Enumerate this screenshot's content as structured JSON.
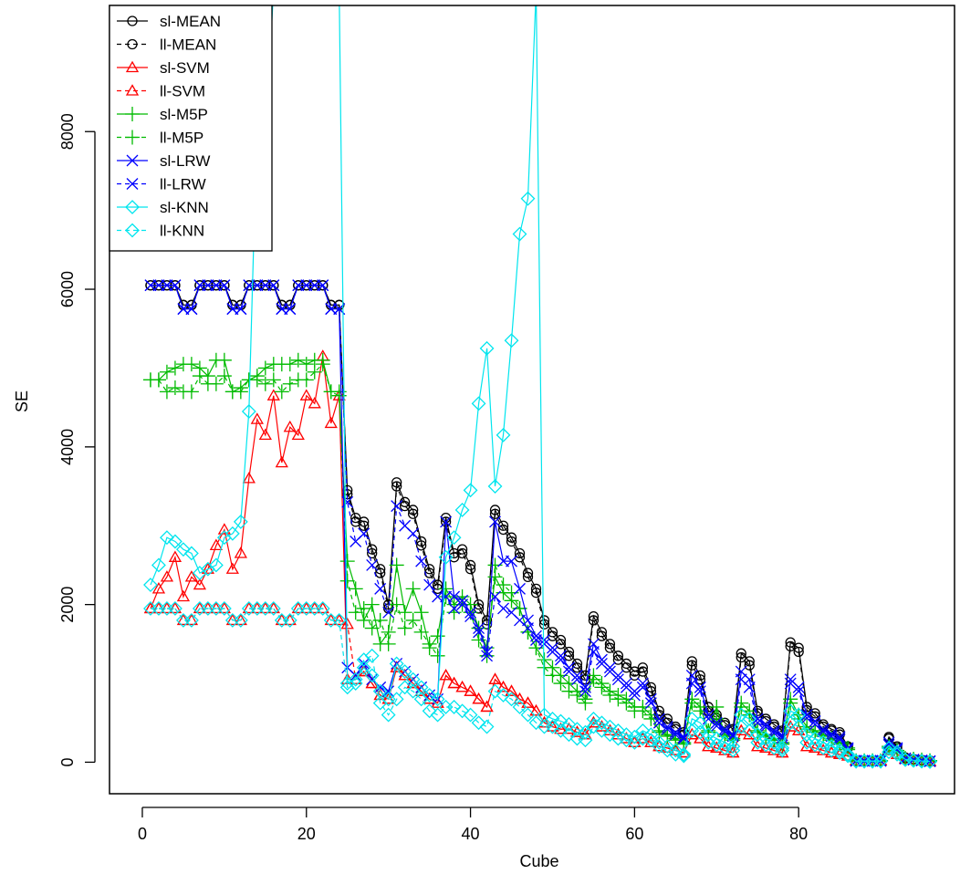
{
  "chart_data": {
    "type": "line",
    "title": "",
    "xlabel": "Cube",
    "ylabel": "SE",
    "xlim": [
      -4,
      99
    ],
    "ylim": [
      -400,
      9600
    ],
    "x_ticks": [
      0,
      20,
      40,
      60,
      80
    ],
    "y_ticks": [
      0,
      2000,
      4000,
      6000,
      8000
    ],
    "grid": false,
    "legend_position": "top-left",
    "x": [
      1,
      2,
      3,
      4,
      5,
      6,
      7,
      8,
      9,
      10,
      11,
      12,
      13,
      14,
      15,
      16,
      17,
      18,
      19,
      20,
      21,
      22,
      23,
      24,
      25,
      26,
      27,
      28,
      29,
      30,
      31,
      32,
      33,
      34,
      35,
      36,
      37,
      38,
      39,
      40,
      41,
      42,
      43,
      44,
      45,
      46,
      47,
      48,
      49,
      50,
      51,
      52,
      53,
      54,
      55,
      56,
      57,
      58,
      59,
      60,
      61,
      62,
      63,
      64,
      65,
      66,
      67,
      68,
      69,
      70,
      71,
      72,
      73,
      74,
      75,
      76,
      77,
      78,
      79,
      80,
      81,
      82,
      83,
      84,
      85,
      86,
      87,
      88,
      89,
      90,
      91,
      92,
      93,
      94,
      95,
      96
    ],
    "series": [
      {
        "name": "sl-MEAN",
        "color": "#000000",
        "dash": false,
        "marker": "circle",
        "values": [
          6050,
          6050,
          6050,
          6050,
          5800,
          5800,
          6050,
          6050,
          6050,
          6050,
          5800,
          5800,
          6050,
          6050,
          6050,
          6050,
          5800,
          5800,
          6050,
          6050,
          6050,
          6050,
          5800,
          5800,
          3450,
          3100,
          3050,
          2700,
          2450,
          2000,
          3550,
          3300,
          3200,
          2800,
          2450,
          2250,
          3100,
          2650,
          2700,
          2500,
          2000,
          1800,
          3200,
          3000,
          2850,
          2650,
          2400,
          2200,
          1800,
          1650,
          1550,
          1400,
          1250,
          1100,
          1850,
          1650,
          1500,
          1350,
          1250,
          1150,
          1200,
          950,
          650,
          550,
          450,
          380,
          1280,
          1100,
          700,
          600,
          500,
          420,
          1380,
          1280,
          650,
          550,
          480,
          400,
          1520,
          1450,
          700,
          620,
          480,
          420,
          380,
          200,
          20,
          20,
          20,
          20,
          320,
          200,
          60,
          40,
          30,
          20
        ]
      },
      {
        "name": "ll-MEAN",
        "color": "#000000",
        "dash": true,
        "marker": "circle",
        "values": [
          6050,
          6050,
          6050,
          6050,
          5800,
          5800,
          6050,
          6050,
          6050,
          6050,
          5800,
          5800,
          6050,
          6050,
          6050,
          6050,
          5800,
          5800,
          6050,
          6050,
          6050,
          6050,
          5800,
          5800,
          3400,
          3050,
          3000,
          2650,
          2400,
          1950,
          3500,
          3250,
          3150,
          2750,
          2400,
          2200,
          3050,
          2600,
          2650,
          2450,
          1950,
          1750,
          3150,
          2950,
          2800,
          2600,
          2350,
          2150,
          1750,
          1600,
          1500,
          1350,
          1200,
          1050,
          1800,
          1600,
          1450,
          1300,
          1200,
          1100,
          1150,
          900,
          600,
          500,
          420,
          350,
          1230,
          1050,
          650,
          560,
          470,
          400,
          1330,
          1230,
          620,
          520,
          450,
          380,
          1470,
          1400,
          660,
          580,
          450,
          400,
          350,
          180,
          15,
          15,
          15,
          15,
          300,
          180,
          50,
          35,
          25,
          15
        ]
      },
      {
        "name": "sl-SVM",
        "color": "#ff0000",
        "dash": false,
        "marker": "triangle",
        "values": [
          1950,
          2200,
          2350,
          2600,
          2100,
          2350,
          2250,
          2450,
          2750,
          2950,
          2450,
          2650,
          3600,
          4350,
          4150,
          4650,
          3800,
          4250,
          4150,
          4650,
          4550,
          5150,
          4300,
          4650,
          1050,
          1050,
          1150,
          1000,
          850,
          800,
          1200,
          1100,
          1000,
          900,
          800,
          750,
          1100,
          1000,
          950,
          900,
          800,
          700,
          1050,
          950,
          900,
          800,
          750,
          650,
          500,
          450,
          420,
          420,
          380,
          350,
          500,
          450,
          400,
          350,
          300,
          250,
          300,
          250,
          200,
          180,
          150,
          120,
          350,
          300,
          200,
          180,
          150,
          120,
          400,
          350,
          200,
          180,
          150,
          120,
          450,
          400,
          200,
          180,
          150,
          120,
          100,
          80,
          20,
          20,
          20,
          20,
          150,
          100,
          40,
          30,
          20,
          10
        ]
      },
      {
        "name": "ll-SVM",
        "color": "#ff0000",
        "dash": true,
        "marker": "triangle",
        "values": [
          1950,
          1950,
          1950,
          1950,
          1800,
          1800,
          1950,
          1950,
          1950,
          1950,
          1800,
          1800,
          1950,
          1950,
          1950,
          1950,
          1800,
          1800,
          1950,
          1950,
          1950,
          1950,
          1800,
          1800,
          1750,
          1050,
          1150,
          1000,
          850,
          800,
          1200,
          1100,
          1000,
          900,
          800,
          750,
          1100,
          1000,
          950,
          900,
          800,
          700,
          1050,
          950,
          900,
          800,
          750,
          650,
          500,
          450,
          420,
          420,
          380,
          350,
          500,
          450,
          400,
          350,
          300,
          250,
          300,
          250,
          200,
          180,
          150,
          120,
          350,
          300,
          200,
          180,
          150,
          120,
          400,
          350,
          200,
          180,
          150,
          120,
          450,
          400,
          200,
          180,
          150,
          120,
          100,
          80,
          20,
          20,
          20,
          20,
          150,
          100,
          40,
          30,
          20,
          10
        ]
      },
      {
        "name": "sl-M5P",
        "color": "#00bb00",
        "dash": false,
        "marker": "plus",
        "values": [
          4850,
          4850,
          4950,
          5000,
          5050,
          5050,
          5000,
          4900,
          5100,
          5100,
          4700,
          4750,
          4850,
          4900,
          5000,
          5050,
          5050,
          5050,
          5100,
          5050,
          5100,
          5100,
          4700,
          4700,
          2550,
          2200,
          1800,
          2000,
          1500,
          1650,
          2500,
          1900,
          2200,
          1900,
          1450,
          1600,
          2200,
          2000,
          2100,
          2000,
          1700,
          1450,
          2350,
          2150,
          2050,
          1950,
          1650,
          1450,
          1300,
          1200,
          1100,
          1000,
          900,
          800,
          1100,
          1000,
          900,
          850,
          800,
          700,
          700,
          600,
          400,
          350,
          300,
          250,
          800,
          700,
          400,
          700,
          350,
          300,
          750,
          650,
          400,
          350,
          300,
          250,
          800,
          600,
          450,
          400,
          350,
          300,
          250,
          180,
          20,
          20,
          20,
          20,
          200,
          150,
          50,
          40,
          30,
          20
        ]
      },
      {
        "name": "ll-M5P",
        "color": "#00bb00",
        "dash": true,
        "marker": "plus",
        "values": [
          4850,
          4850,
          4700,
          4750,
          4700,
          4700,
          4900,
          4800,
          4800,
          4900,
          4700,
          4700,
          4850,
          4850,
          4800,
          4850,
          4700,
          4800,
          4850,
          4850,
          4950,
          5050,
          4700,
          4650,
          2300,
          1900,
          1950,
          1700,
          1800,
          1500,
          2000,
          1700,
          1800,
          1650,
          1500,
          1350,
          2100,
          1900,
          2000,
          1900,
          1550,
          1350,
          2500,
          2250,
          2150,
          1950,
          1650,
          1450,
          1200,
          1100,
          1000,
          900,
          850,
          750,
          1050,
          950,
          850,
          800,
          750,
          650,
          650,
          550,
          380,
          330,
          280,
          230,
          750,
          650,
          380,
          550,
          330,
          280,
          700,
          600,
          380,
          330,
          280,
          230,
          750,
          550,
          420,
          380,
          330,
          280,
          230,
          160,
          15,
          15,
          15,
          15,
          180,
          130,
          40,
          30,
          20,
          15
        ]
      },
      {
        "name": "sl-LRW",
        "color": "#0000ff",
        "dash": false,
        "marker": "x",
        "values": [
          6050,
          6050,
          6050,
          6050,
          5750,
          5750,
          6050,
          6050,
          6050,
          6050,
          5750,
          5750,
          6050,
          6050,
          6050,
          6050,
          5750,
          5750,
          6050,
          6050,
          6050,
          6050,
          5750,
          5750,
          1200,
          1100,
          1250,
          1050,
          950,
          900,
          1250,
          1150,
          1050,
          950,
          850,
          800,
          3050,
          2100,
          2050,
          1900,
          1700,
          1400,
          3050,
          2550,
          2550,
          2200,
          1800,
          1600,
          1550,
          1450,
          1350,
          1200,
          1100,
          950,
          1500,
          1300,
          1200,
          1100,
          1000,
          900,
          1000,
          800,
          550,
          450,
          380,
          320,
          1100,
          950,
          600,
          500,
          420,
          350,
          1150,
          1050,
          550,
          480,
          400,
          340,
          1050,
          950,
          600,
          520,
          420,
          360,
          320,
          180,
          20,
          20,
          20,
          20,
          250,
          180,
          50,
          35,
          25,
          15
        ]
      },
      {
        "name": "ll-LRW",
        "color": "#0000ff",
        "dash": true,
        "marker": "x",
        "values": [
          6050,
          6050,
          6050,
          6050,
          5750,
          5750,
          6050,
          6050,
          6050,
          6050,
          5750,
          5750,
          6050,
          6050,
          6050,
          6050,
          5750,
          5750,
          6050,
          6050,
          6050,
          6050,
          5750,
          5750,
          3300,
          2800,
          2900,
          2500,
          2200,
          1900,
          3250,
          3000,
          2900,
          2550,
          2250,
          2100,
          2100,
          1950,
          2000,
          1850,
          1650,
          1350,
          2100,
          1950,
          1900,
          1800,
          1700,
          1550,
          1500,
          1400,
          1300,
          1150,
          1050,
          900,
          1400,
          1250,
          1150,
          1050,
          950,
          850,
          950,
          750,
          500,
          420,
          350,
          300,
          1000,
          900,
          550,
          460,
          390,
          330,
          1050,
          950,
          500,
          450,
          370,
          310,
          1000,
          900,
          560,
          480,
          390,
          330,
          290,
          160,
          15,
          15,
          15,
          15,
          220,
          160,
          45,
          30,
          20,
          10
        ]
      },
      {
        "name": "sl-KNN",
        "color": "#00e5ee",
        "dash": false,
        "marker": "diamond",
        "values": [
          2250,
          2500,
          2850,
          2800,
          2700,
          2650,
          2400,
          2450,
          2500,
          2850,
          2900,
          3050,
          4450,
          8150,
          7900,
          9800,
          9800,
          9800,
          9800,
          9800,
          9800,
          9800,
          9800,
          9800,
          1000,
          1050,
          1200,
          1100,
          900,
          800,
          1250,
          1150,
          1050,
          950,
          850,
          800,
          2600,
          2850,
          3200,
          3450,
          4550,
          5250,
          3500,
          4150,
          5350,
          6700,
          7150,
          9800,
          600,
          550,
          520,
          480,
          420,
          380,
          550,
          500,
          450,
          400,
          350,
          320,
          400,
          350,
          250,
          200,
          150,
          100,
          550,
          500,
          350,
          300,
          250,
          200,
          600,
          550,
          350,
          300,
          250,
          180,
          650,
          600,
          350,
          300,
          250,
          200,
          150,
          100,
          15,
          15,
          15,
          15,
          180,
          130,
          35,
          25,
          15,
          10
        ]
      },
      {
        "name": "ll-KNN",
        "color": "#00e5ee",
        "dash": true,
        "marker": "diamond",
        "values": [
          1950,
          1950,
          1950,
          1950,
          1800,
          1800,
          1950,
          1950,
          1950,
          1950,
          1800,
          1800,
          1950,
          1950,
          1950,
          1950,
          1800,
          1800,
          1950,
          1950,
          1950,
          1950,
          1800,
          1800,
          950,
          1000,
          1300,
          1350,
          750,
          600,
          800,
          950,
          900,
          800,
          650,
          600,
          700,
          700,
          650,
          600,
          500,
          450,
          900,
          850,
          800,
          700,
          600,
          500,
          450,
          450,
          400,
          350,
          300,
          280,
          450,
          400,
          350,
          300,
          280,
          250,
          300,
          280,
          200,
          150,
          100,
          80,
          400,
          380,
          250,
          220,
          180,
          150,
          450,
          400,
          250,
          220,
          180,
          150,
          500,
          450,
          250,
          220,
          180,
          150,
          120,
          80,
          10,
          10,
          10,
          10,
          130,
          100,
          30,
          20,
          10,
          5
        ]
      }
    ]
  }
}
